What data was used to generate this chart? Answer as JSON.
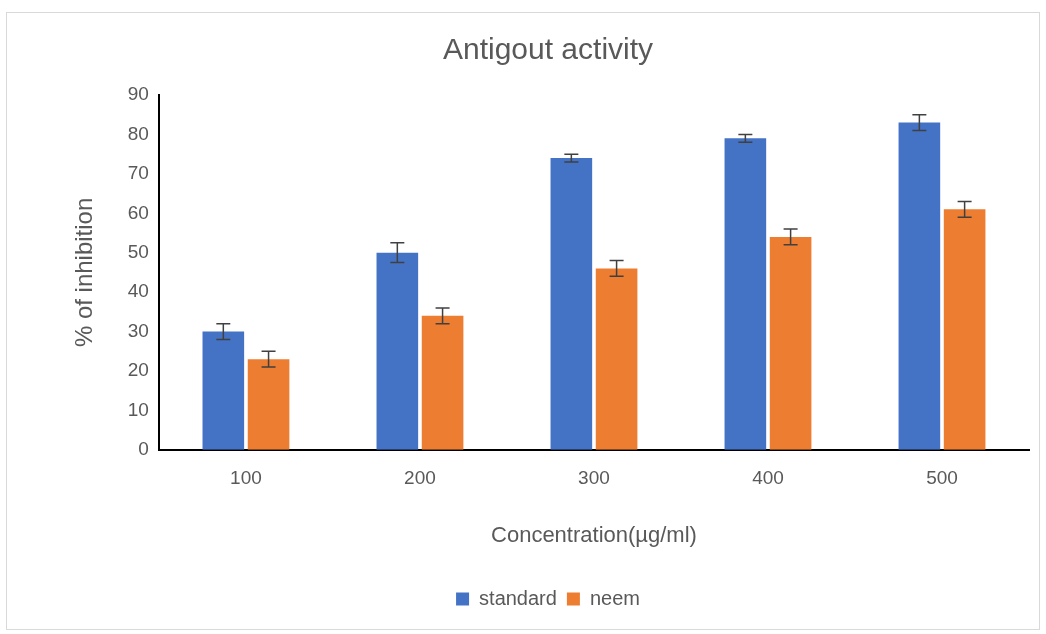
{
  "chart_data": {
    "type": "bar",
    "title": "Antigout activity",
    "xlabel": "Concentration(µg/ml)",
    "ylabel": "% of inhibition",
    "categories": [
      "100",
      "200",
      "300",
      "400",
      "500"
    ],
    "series": [
      {
        "name": "standard",
        "color": "#4472c4",
        "values": [
          30,
          50,
          74,
          79,
          83
        ],
        "errors": [
          2,
          2.5,
          1,
          1,
          2
        ]
      },
      {
        "name": "neem",
        "color": "#ed7d31",
        "values": [
          23,
          34,
          46,
          54,
          61
        ],
        "errors": [
          2,
          2,
          2,
          2,
          2
        ]
      }
    ],
    "ylim": [
      0,
      90
    ],
    "yticks": [
      0,
      10,
      20,
      30,
      40,
      50,
      60,
      70,
      80,
      90
    ],
    "grid": false,
    "legend": "bottom"
  }
}
